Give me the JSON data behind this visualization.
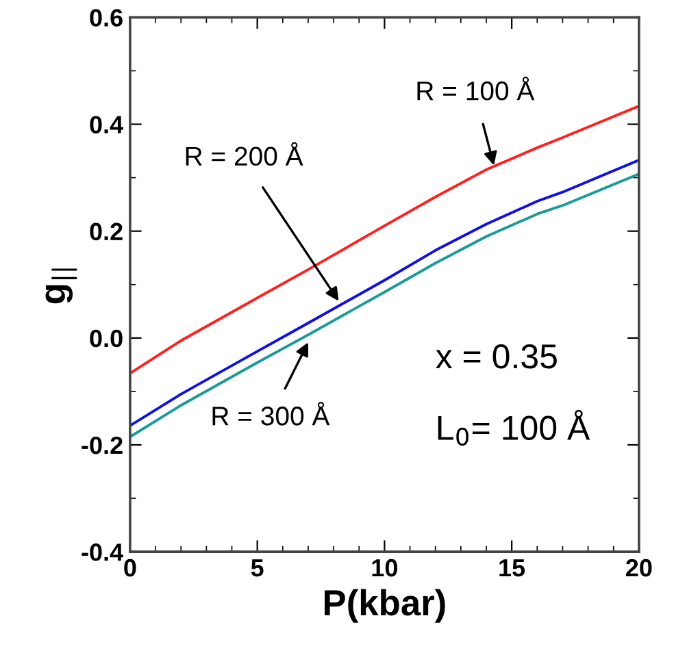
{
  "chart_data": {
    "type": "line",
    "xlabel": "P(kbar)",
    "ylabel": "g$_{||}$",
    "x": [
      0,
      2,
      5,
      7,
      10,
      12,
      14,
      16,
      17,
      20
    ],
    "series": [
      {
        "color": "#ff2020",
        "values": [
          -0.066,
          -0.005,
          0.075,
          0.128,
          0.21,
          0.264,
          0.315,
          0.356,
          0.375,
          0.434
        ]
      },
      {
        "color": "#1010e0",
        "values": [
          -0.164,
          -0.105,
          -0.025,
          0.028,
          0.108,
          0.164,
          0.213,
          0.256,
          0.273,
          0.333
        ]
      },
      {
        "color": "#1a9a9a",
        "values": [
          -0.185,
          -0.126,
          -0.046,
          0.006,
          0.086,
          0.14,
          0.19,
          0.232,
          0.248,
          0.307
        ]
      }
    ],
    "xlim": [
      0,
      20
    ],
    "xticks": [
      0,
      5,
      10,
      15,
      20
    ],
    "ylim": [
      -0.4,
      0.6
    ],
    "yticks": [
      -0.4,
      -0.2,
      {
        "value": 0,
        "label": "0.0"
      },
      0.2,
      0.4,
      0.6
    ],
    "grid": false,
    "legend": false,
    "marker": "none",
    "line_style": "solid",
    "annotations": [
      {
        "text": "R = 100 Å",
        "x": 14.3,
        "y": 0.323
      },
      {
        "text": "R = 200 Å",
        "x": 8.2,
        "y": 0.069
      },
      {
        "text": "R = 300 Å",
        "x": 7.0,
        "y": -0.008
      },
      "x = 0.35",
      "L$_{0}$= 100 Å"
    ]
  }
}
